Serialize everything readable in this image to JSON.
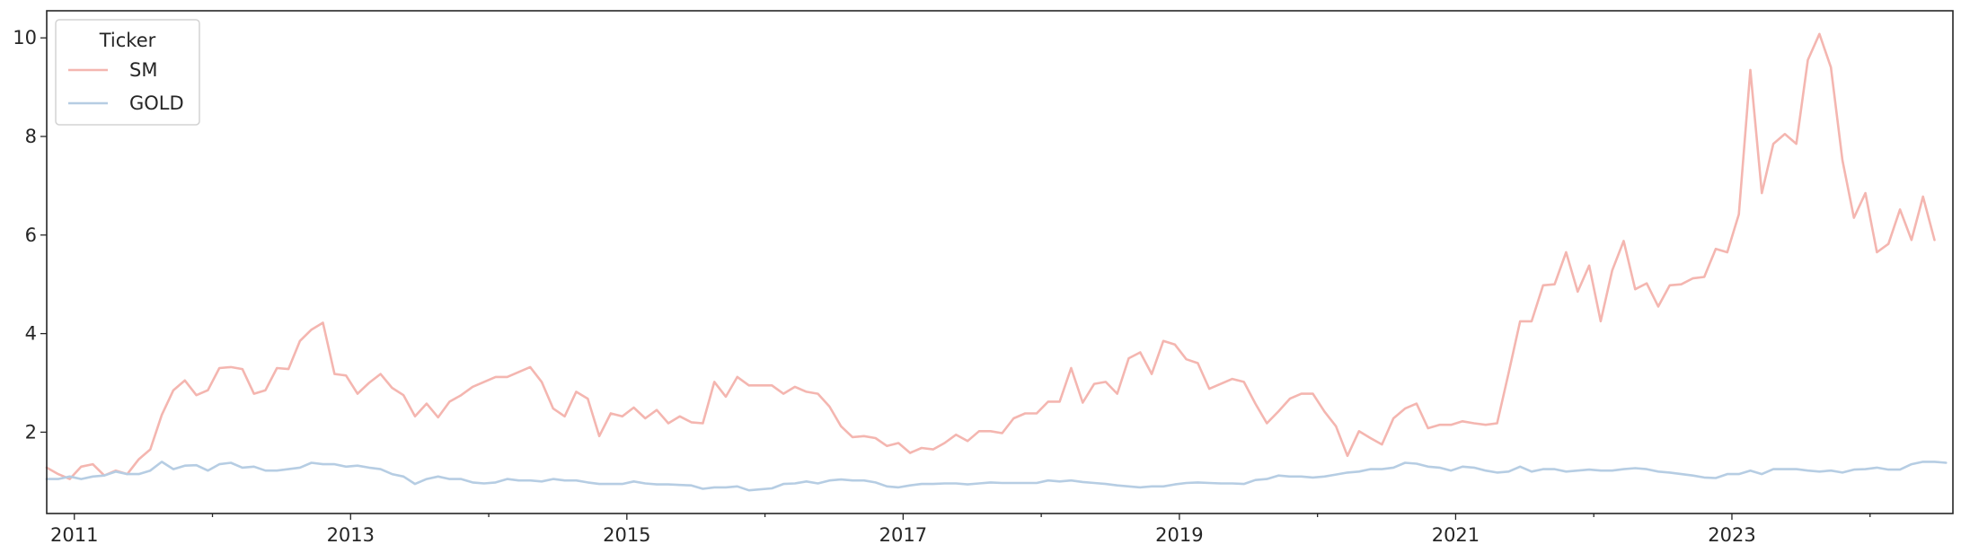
{
  "chart_data": {
    "type": "line",
    "title": "",
    "xlabel": "",
    "ylabel": "",
    "xlim": [
      2010.8,
      2024.6
    ],
    "ylim": [
      0.35,
      10.55
    ],
    "x_ticks": [
      2011,
      2013,
      2015,
      2017,
      2019,
      2021,
      2023
    ],
    "x_tick_labels": [
      "2011",
      "2013",
      "2015",
      "2017",
      "2019",
      "2021",
      "2023"
    ],
    "y_ticks": [
      2,
      4,
      6,
      8,
      10
    ],
    "y_tick_labels": [
      "2",
      "4",
      "6",
      "8",
      "10"
    ],
    "grid": false,
    "legend": {
      "title": "Ticker",
      "placement": "top-left"
    },
    "x_start": 2010.8,
    "x_step": 0.0833333,
    "series": [
      {
        "name": "SM",
        "color": "#f4b6b0",
        "values": [
          1.28,
          1.15,
          1.05,
          1.3,
          1.35,
          1.12,
          1.22,
          1.15,
          1.45,
          1.65,
          2.35,
          2.85,
          3.05,
          2.75,
          2.85,
          3.3,
          3.32,
          3.28,
          2.78,
          2.85,
          3.3,
          3.28,
          3.85,
          4.08,
          4.22,
          3.18,
          3.15,
          2.78,
          3.0,
          3.18,
          2.9,
          2.75,
          2.32,
          2.58,
          2.3,
          2.62,
          2.75,
          2.92,
          3.02,
          3.12,
          3.12,
          3.22,
          3.32,
          3.02,
          2.48,
          2.32,
          2.82,
          2.68,
          1.92,
          2.38,
          2.32,
          2.5,
          2.28,
          2.45,
          2.18,
          2.32,
          2.2,
          2.18,
          3.02,
          2.72,
          3.12,
          2.95,
          2.95,
          2.95,
          2.78,
          2.92,
          2.82,
          2.78,
          2.52,
          2.12,
          1.9,
          1.92,
          1.88,
          1.72,
          1.78,
          1.58,
          1.68,
          1.65,
          1.78,
          1.95,
          1.82,
          2.02,
          2.02,
          1.98,
          2.28,
          2.38,
          2.38,
          2.62,
          2.62,
          3.3,
          2.6,
          2.98,
          3.02,
          2.78,
          3.5,
          3.62,
          3.18,
          3.85,
          3.78,
          3.48,
          3.4,
          2.88,
          2.98,
          3.08,
          3.02,
          2.58,
          2.18,
          2.42,
          2.68,
          2.78,
          2.78,
          2.42,
          2.12,
          1.52,
          2.02,
          1.88,
          1.75,
          2.28,
          2.48,
          2.58,
          2.08,
          2.15,
          2.15,
          2.22,
          2.18,
          2.15,
          2.18,
          3.2,
          4.25,
          4.25,
          4.98,
          5.0,
          5.65,
          4.85,
          5.38,
          4.25,
          5.28,
          5.88,
          4.9,
          5.02,
          4.55,
          4.98,
          5.0,
          5.12,
          5.15,
          5.72,
          5.65,
          6.42,
          9.35,
          6.85,
          7.85,
          8.05,
          7.85,
          9.55,
          10.08,
          9.4,
          7.52,
          6.35,
          6.85,
          5.65,
          5.82,
          6.52,
          5.9,
          6.78,
          5.9
        ]
      },
      {
        "name": "GOLD",
        "color": "#b6cde3",
        "values": [
          1.05,
          1.05,
          1.1,
          1.05,
          1.1,
          1.12,
          1.2,
          1.15,
          1.15,
          1.22,
          1.4,
          1.25,
          1.32,
          1.33,
          1.22,
          1.35,
          1.38,
          1.28,
          1.3,
          1.22,
          1.22,
          1.25,
          1.28,
          1.38,
          1.35,
          1.35,
          1.3,
          1.32,
          1.28,
          1.25,
          1.15,
          1.1,
          0.95,
          1.05,
          1.1,
          1.05,
          1.05,
          0.98,
          0.96,
          0.98,
          1.05,
          1.02,
          1.02,
          1.0,
          1.05,
          1.02,
          1.02,
          0.98,
          0.95,
          0.95,
          0.95,
          1.0,
          0.96,
          0.94,
          0.94,
          0.93,
          0.92,
          0.85,
          0.88,
          0.88,
          0.9,
          0.82,
          0.84,
          0.86,
          0.95,
          0.96,
          1.0,
          0.96,
          1.02,
          1.04,
          1.02,
          1.02,
          0.98,
          0.9,
          0.88,
          0.92,
          0.95,
          0.95,
          0.96,
          0.96,
          0.94,
          0.96,
          0.98,
          0.97,
          0.97,
          0.97,
          0.97,
          1.02,
          1.0,
          1.02,
          0.99,
          0.97,
          0.95,
          0.92,
          0.9,
          0.88,
          0.9,
          0.9,
          0.94,
          0.97,
          0.98,
          0.97,
          0.96,
          0.96,
          0.95,
          1.03,
          1.05,
          1.12,
          1.1,
          1.1,
          1.08,
          1.1,
          1.14,
          1.18,
          1.2,
          1.25,
          1.25,
          1.28,
          1.38,
          1.36,
          1.3,
          1.28,
          1.22,
          1.3,
          1.28,
          1.22,
          1.18,
          1.2,
          1.3,
          1.2,
          1.25,
          1.25,
          1.2,
          1.22,
          1.24,
          1.22,
          1.22,
          1.25,
          1.27,
          1.25,
          1.2,
          1.18,
          1.15,
          1.12,
          1.08,
          1.07,
          1.15,
          1.15,
          1.22,
          1.15,
          1.25,
          1.25,
          1.25,
          1.22,
          1.2,
          1.22,
          1.18,
          1.24,
          1.25,
          1.28,
          1.24,
          1.24,
          1.35,
          1.4,
          1.4,
          1.38
        ]
      }
    ]
  }
}
